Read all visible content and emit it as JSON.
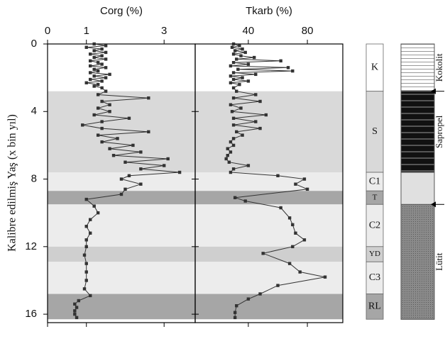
{
  "chart_data": [
    {
      "type": "line",
      "xlabel": "Corg (%)",
      "ylabel": "Kalibre edilmiş Yaş  (x bin yıl)",
      "color": "#333333",
      "xlim": [
        0,
        3.8
      ],
      "xticks": [
        0,
        1,
        3
      ],
      "ylim": [
        16.5,
        0
      ],
      "yticks": [
        0,
        4,
        8,
        12,
        16
      ],
      "ages": [
        0.0,
        0.1,
        0.2,
        0.3,
        0.4,
        0.5,
        0.6,
        0.7,
        0.8,
        0.9,
        1.0,
        1.1,
        1.2,
        1.3,
        1.4,
        1.5,
        1.6,
        1.7,
        1.8,
        1.9,
        2.0,
        2.1,
        2.2,
        2.3,
        2.4,
        2.5,
        2.6,
        2.8,
        3.0,
        3.2,
        3.4,
        3.6,
        3.8,
        4.0,
        4.2,
        4.4,
        4.6,
        4.8,
        5.0,
        5.2,
        5.4,
        5.6,
        5.8,
        6.0,
        6.2,
        6.4,
        6.6,
        6.8,
        7.0,
        7.2,
        7.4,
        7.6,
        7.8,
        8.0,
        8.3,
        8.6,
        8.9,
        9.2,
        9.6,
        10.0,
        10.4,
        10.8,
        11.2,
        11.6,
        12.0,
        12.5,
        13.0,
        13.5,
        14.0,
        14.5,
        14.9,
        15.2,
        15.4,
        15.6,
        15.8,
        16.0,
        16.2
      ],
      "values": [
        1.2,
        1.5,
        1.0,
        1.4,
        1.2,
        1.5,
        1.1,
        1.4,
        1.2,
        1.5,
        1.1,
        1.3,
        1.4,
        1.1,
        1.5,
        1.2,
        1.3,
        1.1,
        1.6,
        1.2,
        1.5,
        1.1,
        1.4,
        1.0,
        1.3,
        1.2,
        1.4,
        1.5,
        1.3,
        2.6,
        1.4,
        1.6,
        1.3,
        1.6,
        1.2,
        2.1,
        1.4,
        0.9,
        1.4,
        2.6,
        1.3,
        1.8,
        1.4,
        2.2,
        1.6,
        2.4,
        1.7,
        3.1,
        2.0,
        3.0,
        2.4,
        3.4,
        2.1,
        1.9,
        2.4,
        2.0,
        1.9,
        1.0,
        1.2,
        1.3,
        1.1,
        1.0,
        1.1,
        1.0,
        1.0,
        0.95,
        1.0,
        1.0,
        1.0,
        0.95,
        1.1,
        0.8,
        0.7,
        0.75,
        0.7,
        0.7,
        0.75
      ]
    },
    {
      "type": "line",
      "xlabel": "Tkarb (%)",
      "color": "#333333",
      "xlim": [
        4,
        104
      ],
      "xticks": [
        40,
        80
      ],
      "ylim": [
        16.5,
        0
      ],
      "ages": [
        0.0,
        0.1,
        0.2,
        0.3,
        0.4,
        0.5,
        0.6,
        0.7,
        0.8,
        0.9,
        1.0,
        1.1,
        1.2,
        1.3,
        1.4,
        1.5,
        1.6,
        1.7,
        1.8,
        1.9,
        2.0,
        2.1,
        2.2,
        2.3,
        2.4,
        2.6,
        2.8,
        3.0,
        3.2,
        3.4,
        3.6,
        3.8,
        4.0,
        4.2,
        4.4,
        4.6,
        4.8,
        5.0,
        5.2,
        5.4,
        5.6,
        5.8,
        6.0,
        6.2,
        6.4,
        6.6,
        6.8,
        7.0,
        7.2,
        7.4,
        7.6,
        7.8,
        8.0,
        8.3,
        8.6,
        9.1,
        9.3,
        9.7,
        10.3,
        10.7,
        11.2,
        11.6,
        12.0,
        12.4,
        13.0,
        13.5,
        13.8,
        14.3,
        14.8,
        15.1,
        15.5,
        15.9,
        16.2
      ],
      "values": [
        30,
        34,
        29,
        36,
        31,
        38,
        30,
        35,
        44,
        32,
        62,
        30,
        40,
        28,
        67,
        33,
        70,
        30,
        45,
        28,
        36,
        30,
        40,
        28,
        34,
        30,
        32,
        45,
        30,
        48,
        28,
        35,
        29,
        52,
        30,
        45,
        30,
        48,
        32,
        36,
        30,
        28,
        30,
        26,
        28,
        26,
        25,
        27,
        40,
        30,
        28,
        60,
        78,
        72,
        80,
        31,
        38,
        62,
        68,
        70,
        72,
        78,
        70,
        50,
        68,
        75,
        92,
        60,
        48,
        40,
        32,
        31,
        31
      ]
    }
  ],
  "zones": [
    {
      "label": "K",
      "from": 0,
      "to": 2.8,
      "color": "#ffffff"
    },
    {
      "label": "S",
      "from": 2.8,
      "to": 7.6,
      "color": "#d9d9d9"
    },
    {
      "label": "C1",
      "from": 7.6,
      "to": 8.7,
      "color": "#ececec"
    },
    {
      "label": "T",
      "from": 8.7,
      "to": 9.5,
      "color": "#a6a6a6"
    },
    {
      "label": "C2",
      "from": 9.5,
      "to": 12.0,
      "color": "#ececec"
    },
    {
      "label": "YD",
      "from": 12.0,
      "to": 12.9,
      "color": "#cfcfcf"
    },
    {
      "label": "C3",
      "from": 12.9,
      "to": 14.8,
      "color": "#ececec"
    },
    {
      "label": "RL",
      "from": 14.8,
      "to": 16.3,
      "color": "#a6a6a6"
    }
  ],
  "lithology": [
    {
      "label": "Kokolit",
      "from": 0,
      "to": 2.8
    },
    {
      "label": "Sapropel",
      "from": 2.8,
      "to": 7.6
    },
    {
      "label": "Lütit",
      "from": 9.5,
      "to": 16.3
    }
  ]
}
